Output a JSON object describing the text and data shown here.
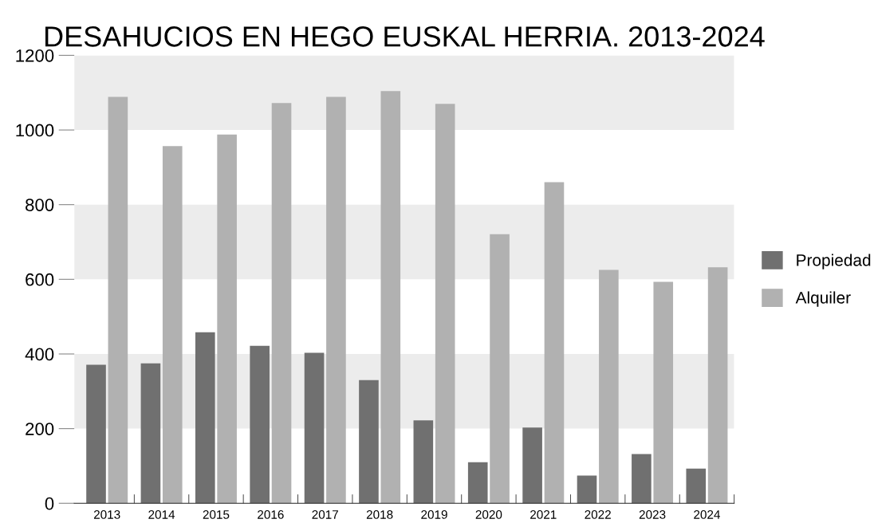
{
  "chart_data": {
    "type": "bar",
    "title": "DESAHUCIOS EN HEGO EUSKAL HERRIA. 2013-2024",
    "categories": [
      "2013",
      "2014",
      "2015",
      "2016",
      "2017",
      "2018",
      "2019",
      "2020",
      "2021",
      "2022",
      "2023",
      "2024"
    ],
    "series": [
      {
        "name": "Propiedad",
        "color": "#707070",
        "values": [
          371,
          375,
          458,
          422,
          403,
          330,
          222,
          110,
          203,
          74,
          132,
          93
        ]
      },
      {
        "name": "Alquiler",
        "color": "#b1b1b1",
        "values": [
          1089,
          957,
          988,
          1072,
          1089,
          1104,
          1070,
          721,
          860,
          625,
          593,
          632
        ]
      }
    ],
    "ylim": [
      0,
      1200
    ],
    "yticks": [
      0,
      200,
      400,
      600,
      800,
      1000,
      1200
    ],
    "bands": [
      {
        "axis": "y",
        "from": 200,
        "to": 400,
        "color": "#ececec"
      },
      {
        "axis": "y",
        "from": 600,
        "to": 800,
        "color": "#ececec"
      },
      {
        "axis": "y",
        "from": 1000,
        "to": 1200,
        "color": "#ececec"
      }
    ],
    "grid": false,
    "legend": "right"
  }
}
